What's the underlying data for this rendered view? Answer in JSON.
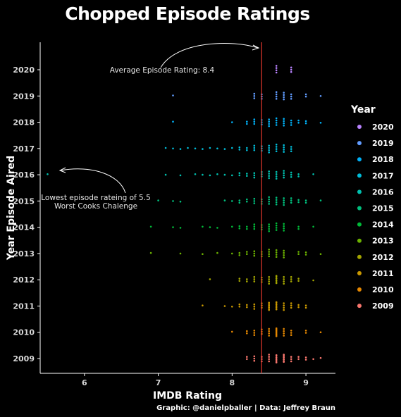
{
  "chart_data": {
    "type": "scatter",
    "title": "Chopped Episode Ratings",
    "xlabel": "IMDB Rating",
    "ylabel": "Year Episode Aired",
    "xlim": [
      5.4,
      9.4
    ],
    "x_ticks": [
      6,
      7,
      8,
      9
    ],
    "y_categories": [
      "2009",
      "2010",
      "2011",
      "2012",
      "2013",
      "2014",
      "2015",
      "2016",
      "2017",
      "2018",
      "2019",
      "2020"
    ],
    "reference_line": {
      "x": 8.4,
      "color": "#e0362c"
    },
    "legend": {
      "title": "Year",
      "placement": "right",
      "entries": [
        "2020",
        "2019",
        "2018",
        "2017",
        "2016",
        "2015",
        "2014",
        "2013",
        "2012",
        "2011",
        "2010",
        "2009"
      ]
    },
    "colors": {
      "2009": "#f8766d",
      "2010": "#e58700",
      "2011": "#c99800",
      "2012": "#a3a500",
      "2013": "#6bb100",
      "2014": "#00ba38",
      "2015": "#00bf7d",
      "2016": "#00c0af",
      "2017": "#00bcd8",
      "2018": "#00b0f6",
      "2019": "#619cff",
      "2020": "#b983ff"
    },
    "series": [
      {
        "name": "2009",
        "x": [
          8.2,
          8.3,
          8.4,
          8.5,
          8.6,
          8.6,
          8.7,
          8.7,
          8.8,
          8.9,
          9.0,
          9.1,
          9.2
        ]
      },
      {
        "name": "2010",
        "x": [
          8.0,
          8.2,
          8.3,
          8.4,
          8.5,
          8.6,
          8.6,
          8.7,
          8.8,
          9.0,
          9.2
        ]
      },
      {
        "name": "2011",
        "x": [
          7.6,
          7.9,
          8.0,
          8.1,
          8.2,
          8.3,
          8.4,
          8.5,
          8.5,
          8.6,
          8.6,
          8.7,
          8.8,
          8.9,
          9.0
        ]
      },
      {
        "name": "2012",
        "x": [
          7.7,
          8.1,
          8.2,
          8.3,
          8.4,
          8.5,
          8.6,
          8.6,
          8.7,
          8.8,
          8.9,
          9.1
        ]
      },
      {
        "name": "2013",
        "x": [
          6.9,
          7.3,
          7.6,
          7.8,
          8.0,
          8.1,
          8.2,
          8.3,
          8.4,
          8.5,
          8.6,
          8.7,
          8.9,
          9.0,
          9.2
        ]
      },
      {
        "name": "2014",
        "x": [
          6.9,
          7.2,
          7.3,
          7.6,
          7.7,
          7.8,
          8.0,
          8.1,
          8.2,
          8.3,
          8.4,
          8.5,
          8.6,
          8.7,
          8.9,
          9.1
        ]
      },
      {
        "name": "2015",
        "x": [
          7.0,
          7.2,
          7.3,
          7.9,
          8.0,
          8.1,
          8.2,
          8.3,
          8.4,
          8.5,
          8.6,
          8.7,
          8.8,
          8.9,
          9.0,
          9.2
        ]
      },
      {
        "name": "2016",
        "x": [
          5.5,
          7.1,
          7.3,
          7.5,
          7.6,
          7.7,
          7.8,
          7.9,
          8.0,
          8.1,
          8.2,
          8.3,
          8.4,
          8.5,
          8.6,
          8.7,
          8.8,
          8.9,
          9.1
        ]
      },
      {
        "name": "2017",
        "x": [
          7.1,
          7.2,
          7.3,
          7.4,
          7.5,
          7.6,
          7.7,
          7.8,
          7.9,
          8.0,
          8.1,
          8.2,
          8.3,
          8.4,
          8.5,
          8.6,
          8.7,
          8.8
        ]
      },
      {
        "name": "2018",
        "x": [
          7.2,
          8.0,
          8.2,
          8.3,
          8.4,
          8.5,
          8.6,
          8.7,
          8.8,
          8.9,
          9.0,
          9.2
        ]
      },
      {
        "name": "2019",
        "x": [
          7.2,
          8.3,
          8.4,
          8.6,
          8.7,
          8.8,
          9.0,
          9.2
        ]
      },
      {
        "name": "2020",
        "x": [
          8.6,
          8.8
        ]
      }
    ],
    "annotations": [
      {
        "text": "Average Episode Rating: 8.4"
      },
      {
        "text": "Lowest episode rateing of 5.5"
      },
      {
        "text": "Worst Cooks Chalenge"
      }
    ],
    "caption": "Graphic: @danielpballer | Data: Jeffrey Braun"
  }
}
